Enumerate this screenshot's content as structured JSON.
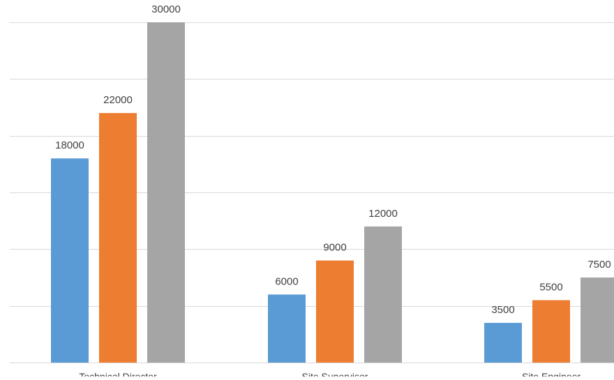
{
  "chart_data": {
    "type": "bar",
    "categories": [
      "Technical Director",
      "Site Supervisor",
      "Site Engineer"
    ],
    "series": [
      {
        "values": [
          18000,
          6000,
          3500
        ],
        "color": "#5b9bd5"
      },
      {
        "values": [
          22000,
          9000,
          5500
        ],
        "color": "#ed7d31"
      },
      {
        "values": [
          30000,
          12000,
          7500
        ],
        "color": "#a5a5a5"
      }
    ],
    "ylim": [
      0,
      30000
    ],
    "y_tick_step": 5000,
    "grid": true,
    "gridline_color": "#d9d9d9",
    "label_color": "#404040",
    "legend": "none"
  }
}
